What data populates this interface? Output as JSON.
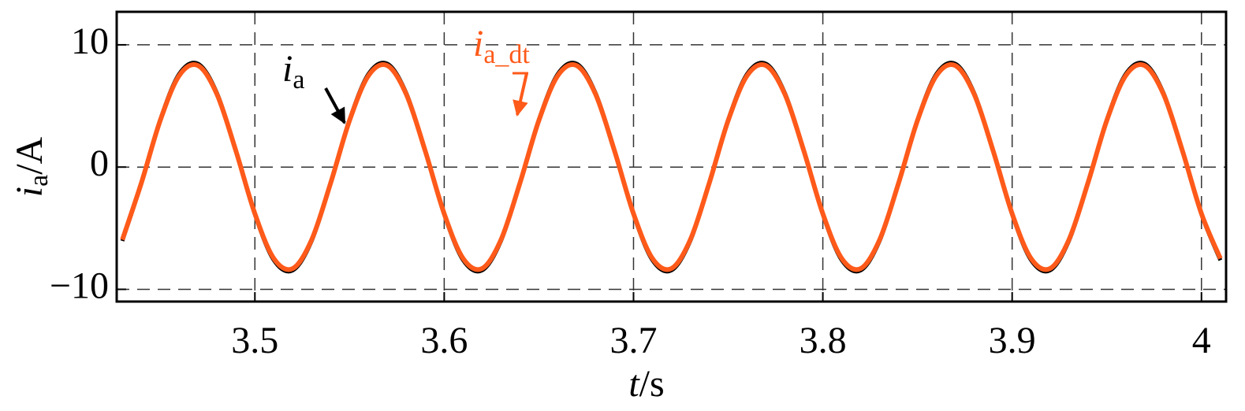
{
  "chart_data": {
    "type": "line",
    "xlabel": {
      "var": "t",
      "unit": "/s"
    },
    "ylabel": {
      "var": "i",
      "sub": "a",
      "unit": "/A"
    },
    "x": [
      3.43,
      3.44,
      3.45,
      3.46,
      3.47,
      3.48,
      3.49,
      3.5,
      3.51,
      3.52,
      3.53,
      3.54,
      3.55,
      3.56,
      3.57,
      3.58,
      3.59,
      3.6,
      3.61,
      3.62,
      3.63,
      3.64,
      3.65,
      3.66,
      3.67,
      3.68,
      3.69,
      3.7,
      3.71,
      3.72,
      3.73,
      3.74,
      3.75,
      3.76,
      3.77,
      3.78,
      3.79,
      3.8,
      3.81,
      3.82,
      3.83,
      3.84,
      3.85,
      3.86,
      3.87,
      3.88,
      3.89,
      3.9,
      3.91,
      3.92,
      3.93,
      3.94,
      3.95,
      3.96,
      3.97,
      3.98,
      3.99,
      4.0,
      4.01
    ],
    "series": [
      {
        "color": "#000000",
        "values": [
          -6.04,
          -1.33,
          3.88,
          7.62,
          8.45,
          6.04,
          1.33,
          -3.88,
          -7.62,
          -8.45,
          -6.04,
          -1.33,
          3.88,
          7.62,
          8.45,
          6.04,
          1.33,
          -3.88,
          -7.62,
          -8.45,
          -6.04,
          -1.33,
          3.88,
          7.62,
          8.45,
          6.04,
          1.33,
          -3.88,
          -7.62,
          -8.45,
          -6.04,
          -1.33,
          3.88,
          7.62,
          8.45,
          6.04,
          1.33,
          -3.88,
          -7.62,
          -8.45,
          -6.04,
          -1.33,
          3.88,
          7.62,
          8.45,
          6.04,
          1.33,
          -3.88,
          -7.62,
          -8.45,
          -6.04,
          -1.33,
          3.88,
          7.62,
          8.45,
          6.04,
          1.33,
          -3.88,
          -7.62
        ]
      },
      {
        "color": "#ff5a1a",
        "values": [
          -5.94,
          -1.31,
          3.81,
          7.48,
          8.3,
          5.94,
          1.31,
          -3.81,
          -7.48,
          -8.3,
          -5.94,
          -1.31,
          3.81,
          7.48,
          8.3,
          5.94,
          1.31,
          -3.81,
          -7.48,
          -8.3,
          -5.94,
          -1.31,
          3.81,
          7.48,
          8.3,
          5.94,
          1.31,
          -3.81,
          -7.48,
          -8.3,
          -5.94,
          -1.31,
          3.81,
          7.48,
          8.3,
          5.94,
          1.31,
          -3.81,
          -7.48,
          -8.3,
          -5.94,
          -1.31,
          3.81,
          7.48,
          8.3,
          5.94,
          1.31,
          -3.81,
          -7.48,
          -8.3,
          -5.94,
          -1.31,
          3.81,
          7.48,
          8.3,
          5.94,
          1.31,
          -3.81,
          -7.48
        ]
      }
    ],
    "annotations": [
      {
        "var": "i",
        "sub": "a"
      },
      {
        "var": "i",
        "sub": "a_dt"
      }
    ],
    "xlim": [
      3.427,
      4.013
    ],
    "ylim": [
      -11,
      12.7
    ],
    "xticks": [
      3.5,
      3.6,
      3.7,
      3.8,
      3.9,
      4
    ],
    "yticks": [
      {
        "value": -10,
        "label": "−10"
      },
      0,
      10
    ],
    "grid": true
  }
}
